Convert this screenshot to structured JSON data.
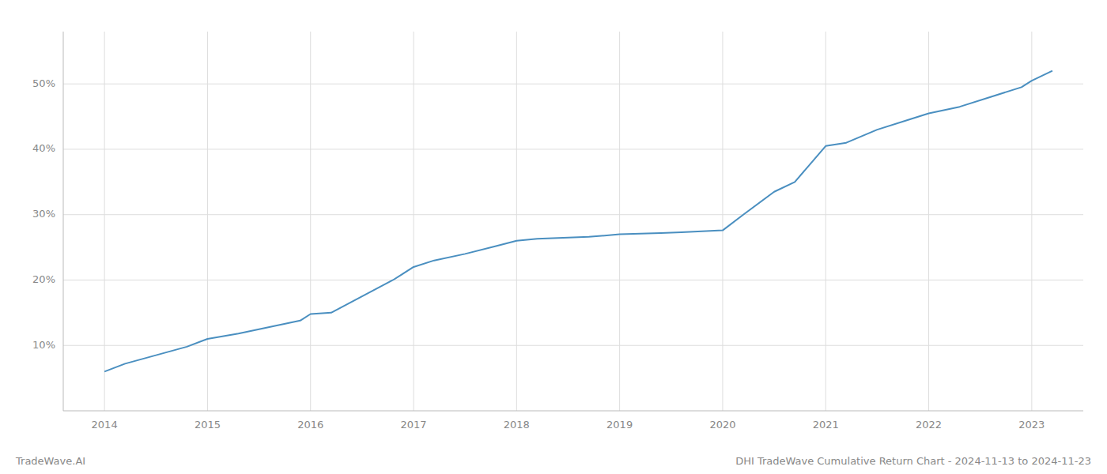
{
  "chart_data": {
    "type": "line",
    "title": "DHI TradeWave Cumulative Return Chart - 2024-11-13 to 2024-11-23",
    "annotations": [
      {
        "text": "TradeWave.AI"
      }
    ],
    "color": "#4a8fc0",
    "x": [
      2014.0,
      2014.2,
      2014.5,
      2014.8,
      2015.0,
      2015.3,
      2015.6,
      2015.9,
      2016.0,
      2016.2,
      2016.5,
      2016.8,
      2017.0,
      2017.2,
      2017.5,
      2017.8,
      2018.0,
      2018.2,
      2018.5,
      2018.7,
      2019.0,
      2019.2,
      2019.4,
      2019.6,
      2020.0,
      2020.2,
      2020.5,
      2020.7,
      2021.0,
      2021.2,
      2021.5,
      2021.8,
      2022.0,
      2022.3,
      2022.6,
      2022.9,
      2023.0,
      2023.2
    ],
    "values": [
      6.0,
      7.2,
      8.5,
      9.8,
      11.0,
      11.8,
      12.8,
      13.8,
      14.8,
      15.0,
      17.5,
      20.0,
      22.0,
      23.0,
      24.0,
      25.2,
      26.0,
      26.3,
      26.5,
      26.6,
      27.0,
      27.1,
      27.2,
      27.3,
      27.6,
      30.0,
      33.5,
      35.0,
      40.5,
      41.0,
      43.0,
      44.5,
      45.5,
      46.5,
      48.0,
      49.5,
      50.5,
      52.0
    ],
    "xlim": [
      2013.6,
      2023.5
    ],
    "ylim": [
      0,
      58
    ],
    "xticks": [
      2014,
      2015,
      2016,
      2017,
      2018,
      2019,
      2020,
      2021,
      2022,
      2023
    ],
    "yticks": [
      {
        "value": 10,
        "label": "10%"
      },
      {
        "value": 20,
        "label": "20%"
      },
      {
        "value": 30,
        "label": "30%"
      },
      {
        "value": 40,
        "label": "40%"
      },
      {
        "value": 50,
        "label": "50%"
      }
    ],
    "grid": true
  }
}
